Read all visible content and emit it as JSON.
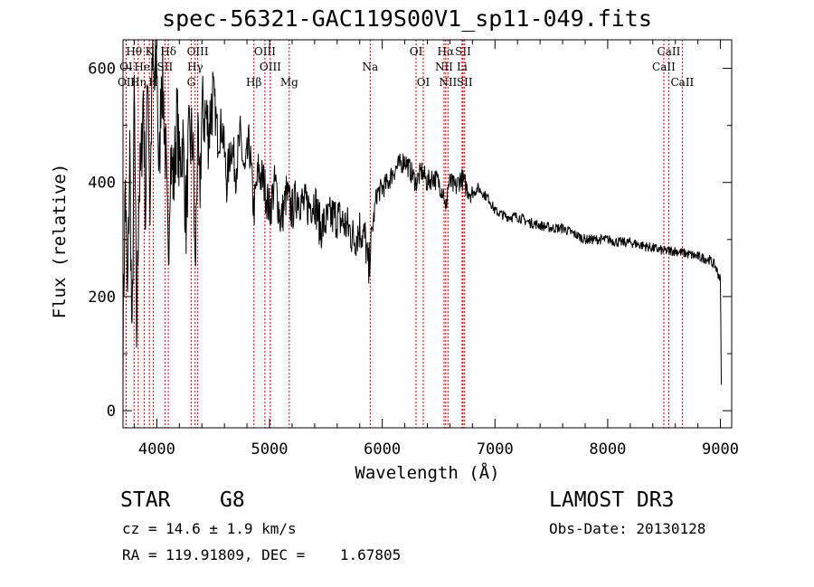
{
  "chart_data": {
    "type": "line",
    "title": "spec-56321-GAC119S00V1_sp11-049.fits",
    "xlabel": "Wavelength (Å)",
    "ylabel": "Flux (relative)",
    "xlim": [
      3700,
      9100
    ],
    "ylim": [
      -30,
      650
    ],
    "xticks": [
      4000,
      5000,
      6000,
      7000,
      8000,
      9000
    ],
    "xtick_labels": [
      "4000",
      "5000",
      "6000",
      "7000",
      "8000",
      "9000"
    ],
    "yticks": [
      0,
      200,
      400,
      600
    ],
    "ytick_labels": [
      "0",
      "200",
      "400",
      "600"
    ],
    "series": [
      {
        "name": "spectrum",
        "x": [
          3700,
          3720,
          3740,
          3760,
          3780,
          3800,
          3820,
          3840,
          3860,
          3880,
          3900,
          3920,
          3940,
          3960,
          3980,
          4000,
          4020,
          4040,
          4060,
          4080,
          4100,
          4120,
          4150,
          4180,
          4200,
          4230,
          4260,
          4280,
          4300,
          4320,
          4340,
          4360,
          4380,
          4400,
          4430,
          4460,
          4500,
          4540,
          4580,
          4620,
          4660,
          4700,
          4740,
          4780,
          4820,
          4860,
          4900,
          4950,
          5000,
          5050,
          5100,
          5150,
          5180,
          5200,
          5250,
          5300,
          5350,
          5400,
          5450,
          5500,
          5550,
          5600,
          5650,
          5700,
          5750,
          5800,
          5850,
          5880,
          5890,
          5900,
          5920,
          5950,
          6000,
          6050,
          6100,
          6150,
          6200,
          6250,
          6300,
          6350,
          6400,
          6450,
          6500,
          6550,
          6562,
          6580,
          6600,
          6650,
          6700,
          6750,
          6800,
          6850,
          6900,
          6950,
          7000,
          7100,
          7200,
          7300,
          7400,
          7500,
          7600,
          7700,
          7800,
          7900,
          8000,
          8100,
          8200,
          8300,
          8400,
          8500,
          8600,
          8700,
          8800,
          8900,
          8950,
          9000,
          9010
        ],
        "values": [
          120,
          400,
          180,
          460,
          90,
          560,
          130,
          380,
          420,
          560,
          340,
          620,
          350,
          610,
          560,
          620,
          390,
          600,
          540,
          440,
          250,
          450,
          400,
          520,
          420,
          480,
          330,
          460,
          470,
          480,
          230,
          470,
          370,
          520,
          520,
          490,
          560,
          480,
          500,
          400,
          470,
          420,
          480,
          410,
          470,
          350,
          420,
          400,
          350,
          400,
          330,
          380,
          360,
          350,
          380,
          360,
          360,
          370,
          320,
          330,
          340,
          340,
          330,
          320,
          300,
          320,
          300,
          240,
          280,
          300,
          330,
          380,
          390,
          400,
          420,
          430,
          440,
          420,
          400,
          420,
          400,
          410,
          400,
          380,
          340,
          390,
          400,
          390,
          410,
          390,
          380,
          390,
          380,
          370,
          350,
          340,
          340,
          330,
          325,
          320,
          320,
          310,
          300,
          300,
          300,
          295,
          295,
          290,
          285,
          280,
          280,
          275,
          270,
          265,
          255,
          230,
          10
        ]
      }
    ],
    "lines": [
      {
        "label": "Hθ",
        "wave": 3798,
        "row": 1
      },
      {
        "label": "K",
        "wave": 3934,
        "row": 1
      },
      {
        "label": "Hδ",
        "wave": 4102,
        "row": 1
      },
      {
        "label": "OIII",
        "wave": 4363,
        "row": 1
      },
      {
        "label": "OIII",
        "wave": 4959,
        "row": 1
      },
      {
        "label": "OI",
        "wave": 6300,
        "row": 1
      },
      {
        "label": "Hα",
        "wave": 6563,
        "row": 1
      },
      {
        "label": "SII",
        "wave": 6717,
        "row": 1
      },
      {
        "label": "CaII",
        "wave": 8542,
        "row": 1
      },
      {
        "label": "OI",
        "wave": 3727,
        "row": 2
      },
      {
        "label": "HeI",
        "wave": 3889,
        "row": 2
      },
      {
        "label": "SII",
        "wave": 4072,
        "row": 2
      },
      {
        "label": "Hγ",
        "wave": 4340,
        "row": 2
      },
      {
        "label": "OIII",
        "wave": 5007,
        "row": 2
      },
      {
        "label": "Na",
        "wave": 5893,
        "row": 2
      },
      {
        "label": "NII",
        "wave": 6548,
        "row": 2
      },
      {
        "label": "Li",
        "wave": 6708,
        "row": 2
      },
      {
        "label": "CaII",
        "wave": 8498,
        "row": 2
      },
      {
        "label": "OII",
        "wave": 3729,
        "row": 3
      },
      {
        "label": "Hη",
        "wave": 3835,
        "row": 3
      },
      {
        "label": "H",
        "wave": 3969,
        "row": 3
      },
      {
        "label": "G",
        "wave": 4305,
        "row": 3
      },
      {
        "label": "Hβ",
        "wave": 4861,
        "row": 3
      },
      {
        "label": "Mg",
        "wave": 5175,
        "row": 3
      },
      {
        "label": "OI",
        "wave": 6364,
        "row": 3
      },
      {
        "label": "NII",
        "wave": 6583,
        "row": 3
      },
      {
        "label": "SII",
        "wave": 6731,
        "row": 3
      },
      {
        "label": "CaII",
        "wave": 8662,
        "row": 3
      }
    ]
  },
  "info": {
    "class": "STAR",
    "subclass": "G8",
    "cz": "cz = 14.6 ± 1.9 km/s",
    "radec": "RA = 119.91809, DEC =    1.67805",
    "survey": "LAMOST DR3",
    "obsdate": "Obs-Date: 20130128"
  },
  "colors": {
    "line_marker": "#cc0000",
    "spectrum": "#000000"
  }
}
